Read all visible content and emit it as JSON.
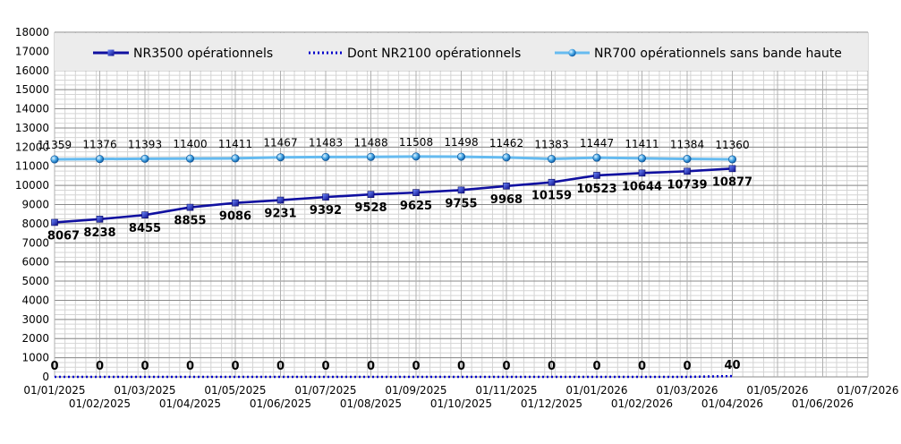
{
  "chart_data": {
    "type": "line",
    "ylim": [
      0,
      18000
    ],
    "y_tick_step": 1000,
    "x_axis_labels": [
      "01/01/2025",
      "01/02/2025",
      "01/03/2025",
      "01/04/2025",
      "01/05/2025",
      "01/06/2025",
      "01/07/2025",
      "01/08/2025",
      "01/09/2025",
      "01/10/2025",
      "01/11/2025",
      "01/12/2025",
      "01/01/2026",
      "01/02/2026",
      "01/03/2026",
      "01/04/2026",
      "01/05/2026",
      "01/06/2026",
      "01/07/2026"
    ],
    "categories": [
      "01/01/2025",
      "01/02/2025",
      "01/03/2025",
      "01/04/2025",
      "01/05/2025",
      "01/06/2025",
      "01/07/2025",
      "01/08/2025",
      "01/09/2025",
      "01/10/2025",
      "01/11/2025",
      "01/12/2025",
      "01/01/2026",
      "01/02/2026",
      "01/03/2026",
      "01/04/2026"
    ],
    "legend_position": "top",
    "grid": true,
    "series": [
      {
        "name": "NR3500 opérationnels",
        "color": "#1010a0",
        "style": "solid-square",
        "values": [
          8067,
          8238,
          8455,
          8855,
          9086,
          9231,
          9392,
          9528,
          9625,
          9755,
          9968,
          10159,
          10523,
          10644,
          10739,
          10877
        ]
      },
      {
        "name": "Dont NR2100 opérationnels",
        "color": "#0000cc",
        "style": "dotted",
        "values": [
          0,
          0,
          0,
          0,
          0,
          0,
          0,
          0,
          0,
          0,
          0,
          0,
          0,
          0,
          0,
          40
        ]
      },
      {
        "name": "NR700 opérationnels sans bande haute",
        "color": "#66bbf0",
        "style": "solid-circle",
        "values": [
          11359,
          11376,
          11393,
          11400,
          11411,
          11467,
          11483,
          11488,
          11508,
          11498,
          11462,
          11383,
          11447,
          11411,
          11384,
          11360
        ]
      }
    ]
  }
}
